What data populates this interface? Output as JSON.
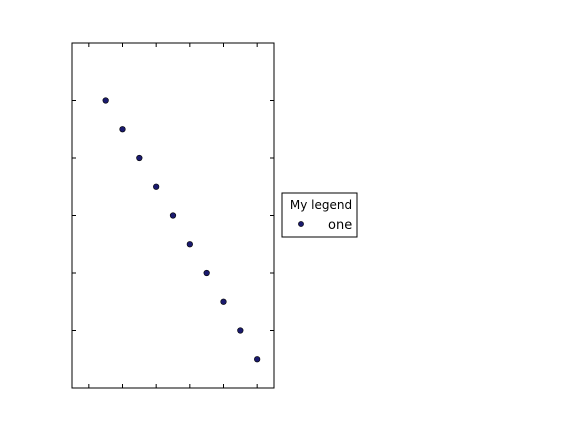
{
  "chart_data": {
    "type": "scatter",
    "title": "",
    "xlabel": "",
    "ylabel": "",
    "xlim": [
      -1,
      11
    ],
    "ylim": [
      0,
      12
    ],
    "grid": false,
    "tick_labels_visible": false,
    "legend": {
      "title": "My legend",
      "placement": "outside-right",
      "entries": [
        "one"
      ]
    },
    "series": [
      {
        "name": "one",
        "marker": "circle",
        "color": "#1a1a6e",
        "edgecolor": "#000000",
        "x": [
          1,
          2,
          3,
          4,
          5,
          6,
          7,
          8,
          9,
          10
        ],
        "y": [
          10,
          9,
          8,
          7,
          6,
          5,
          4,
          3,
          2,
          1
        ]
      }
    ]
  }
}
